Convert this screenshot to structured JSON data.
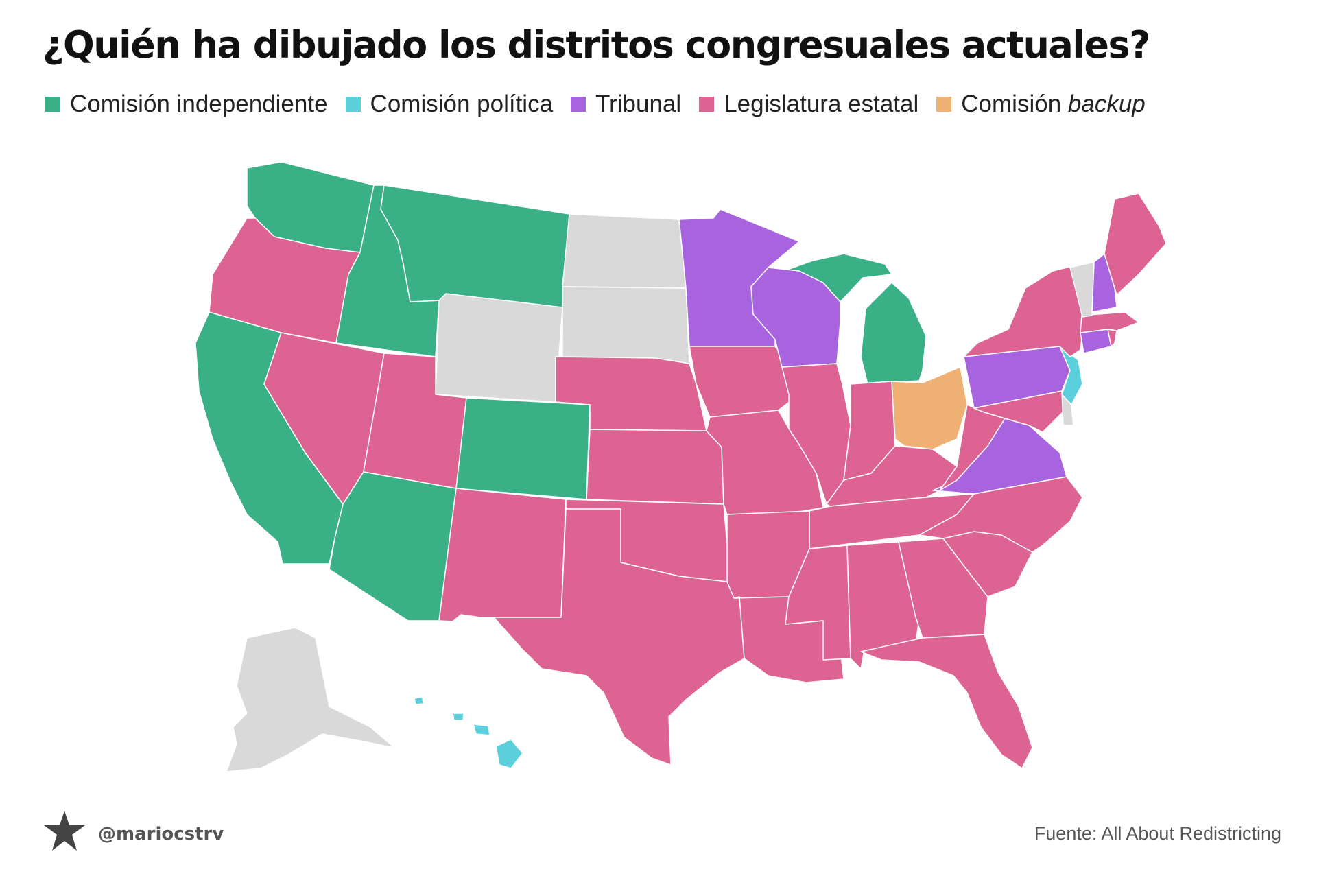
{
  "title": "¿Quién ha dibujado los distritos congresuales actuales?",
  "legend": [
    {
      "label": "Comisión independiente",
      "color": "#3ab087"
    },
    {
      "label": "Comisión política",
      "color": "#5bd0dc"
    },
    {
      "label": "Tribunal",
      "color": "#a864de"
    },
    {
      "label": "Legislatura estatal",
      "color": "#dd6392"
    },
    {
      "label": "Comisión ",
      "label_italic": "backup",
      "color": "#efb074"
    }
  ],
  "no_data_color": "#d9d9d9",
  "footer": {
    "handle": "@mariocstrv",
    "logo_icon": "star-logo-icon",
    "source": "Fuente: All About Redistricting"
  },
  "map_categories": {
    "independent_commission": [
      "WA",
      "ID",
      "MT",
      "CA",
      "AZ",
      "CO",
      "MI"
    ],
    "political_commission": [
      "NJ",
      "HI"
    ],
    "court": [
      "MN",
      "WI",
      "PA",
      "VA",
      "NH",
      "CT"
    ],
    "state_legislature": [
      "OR",
      "NV",
      "UT",
      "NM",
      "TX",
      "NE",
      "KS",
      "OK",
      "IA",
      "MO",
      "AR",
      "LA",
      "IL",
      "IN",
      "KY",
      "TN",
      "MS",
      "AL",
      "GA",
      "FL",
      "SC",
      "NC",
      "WV",
      "MD",
      "NY",
      "MA",
      "ME",
      "RI"
    ],
    "backup_commission": [
      "OH"
    ],
    "single_district_no_data": [
      "ND",
      "SD",
      "WY",
      "AK",
      "VT",
      "DE"
    ]
  }
}
